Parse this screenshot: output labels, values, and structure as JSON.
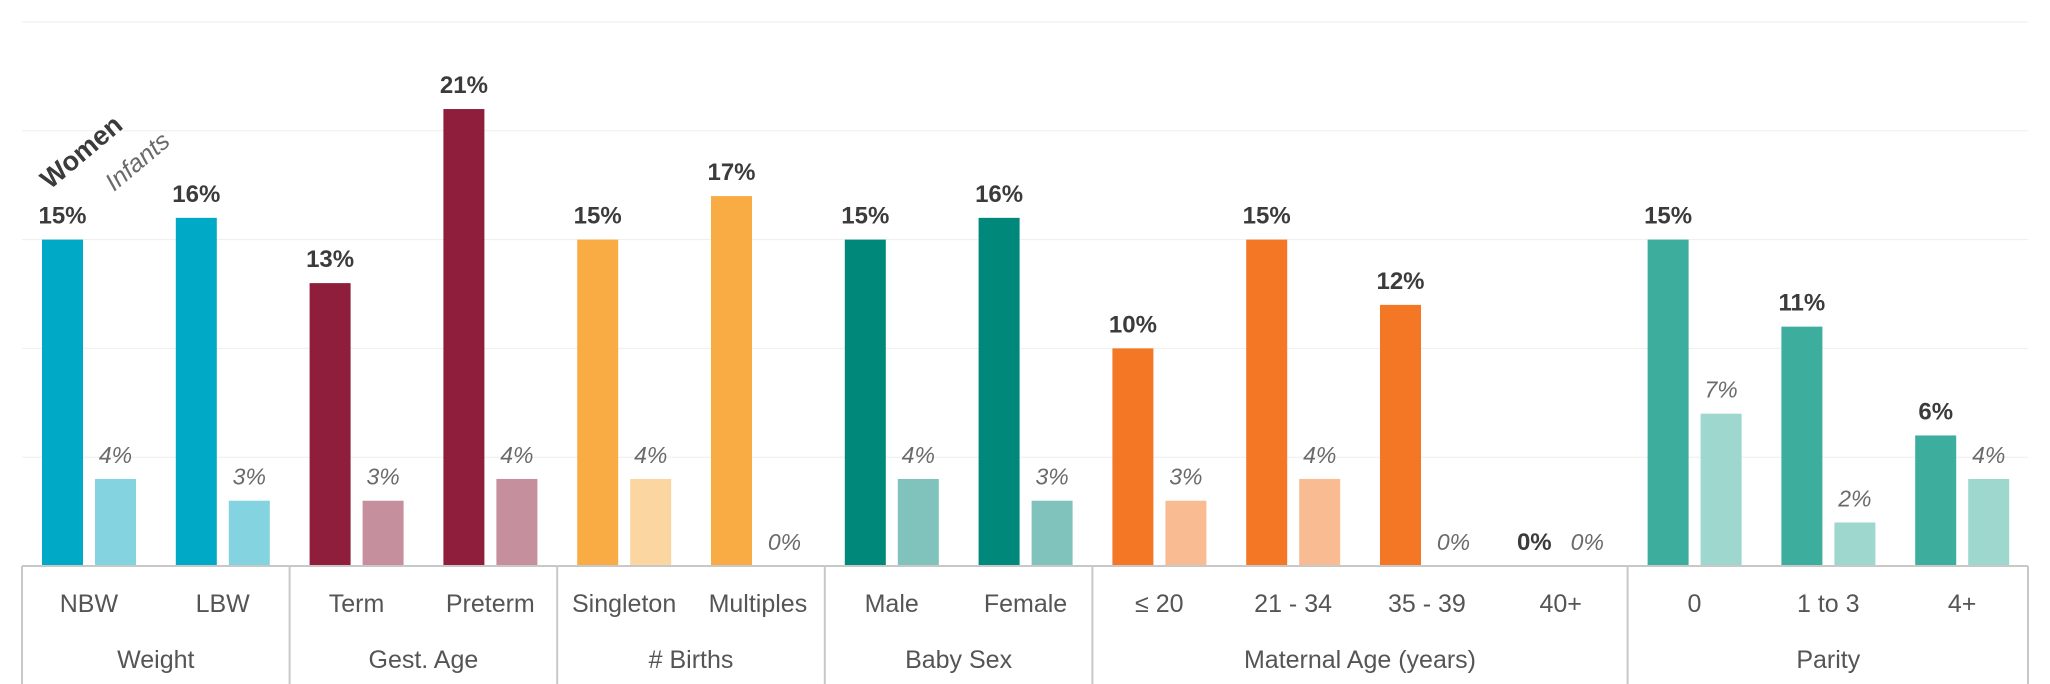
{
  "chart_data": {
    "type": "bar",
    "title": "",
    "xlabel": "",
    "ylabel": "",
    "ylim": [
      0,
      0.25
    ],
    "grid": true,
    "legend_position": "top-left",
    "series": [
      {
        "name": "Women",
        "style": "bold"
      },
      {
        "name": "Infants",
        "style": "italic"
      }
    ],
    "groups": [
      {
        "label": "Weight",
        "color": "#00a9c6",
        "light_color": "#83d3e1",
        "categories": [
          {
            "label": "NBW",
            "women": 0.15,
            "infants": 0.04,
            "women_label": "15%",
            "infants_label": "4%"
          },
          {
            "label": "LBW",
            "women": 0.16,
            "infants": 0.03,
            "women_label": "16%",
            "infants_label": "3%"
          }
        ]
      },
      {
        "label": "Gest. Age",
        "color": "#8e1e3b",
        "light_color": "#c68f9d",
        "categories": [
          {
            "label": "Term",
            "women": 0.13,
            "infants": 0.03,
            "women_label": "13%",
            "infants_label": "3%"
          },
          {
            "label": "Preterm",
            "women": 0.21,
            "infants": 0.04,
            "women_label": "21%",
            "infants_label": "4%"
          }
        ]
      },
      {
        "label": "# Births",
        "color": "#f9ac43",
        "light_color": "#fcd6a1",
        "categories": [
          {
            "label": "Singleton",
            "women": 0.15,
            "infants": 0.04,
            "women_label": "15%",
            "infants_label": "4%"
          },
          {
            "label": "Multiples",
            "women": 0.17,
            "infants": 0.0,
            "women_label": "17%",
            "infants_label": "0%"
          }
        ]
      },
      {
        "label": "Baby Sex",
        "color": "#00887a",
        "light_color": "#80c3bc",
        "categories": [
          {
            "label": "Male",
            "women": 0.15,
            "infants": 0.04,
            "women_label": "15%",
            "infants_label": "4%"
          },
          {
            "label": "Female",
            "women": 0.16,
            "infants": 0.03,
            "women_label": "16%",
            "infants_label": "3%"
          }
        ]
      },
      {
        "label": "Maternal Age (years)",
        "color": "#f47725",
        "light_color": "#f9bb92",
        "categories": [
          {
            "label": "≤ 20",
            "women": 0.1,
            "infants": 0.03,
            "women_label": "10%",
            "infants_label": "3%"
          },
          {
            "label": "21 - 34",
            "women": 0.15,
            "infants": 0.04,
            "women_label": "15%",
            "infants_label": "4%"
          },
          {
            "label": "35 - 39",
            "women": 0.12,
            "infants": 0.0,
            "women_label": "12%",
            "infants_label": "0%"
          },
          {
            "label": "40+",
            "women": 0.0,
            "infants": 0.0,
            "women_label": "0%",
            "infants_label": "0%"
          }
        ]
      },
      {
        "label": "Parity",
        "color": "#3dae9d",
        "light_color": "#9ed7ce",
        "categories": [
          {
            "label": "0",
            "women": 0.15,
            "infants": 0.07,
            "women_label": "15%",
            "infants_label": "7%"
          },
          {
            "label": "1 to 3",
            "women": 0.11,
            "infants": 0.02,
            "women_label": "11%",
            "infants_label": "2%"
          },
          {
            "label": "4+",
            "women": 0.06,
            "infants": 0.04,
            "women_label": "6%",
            "infants_label": "4%"
          }
        ]
      }
    ]
  }
}
